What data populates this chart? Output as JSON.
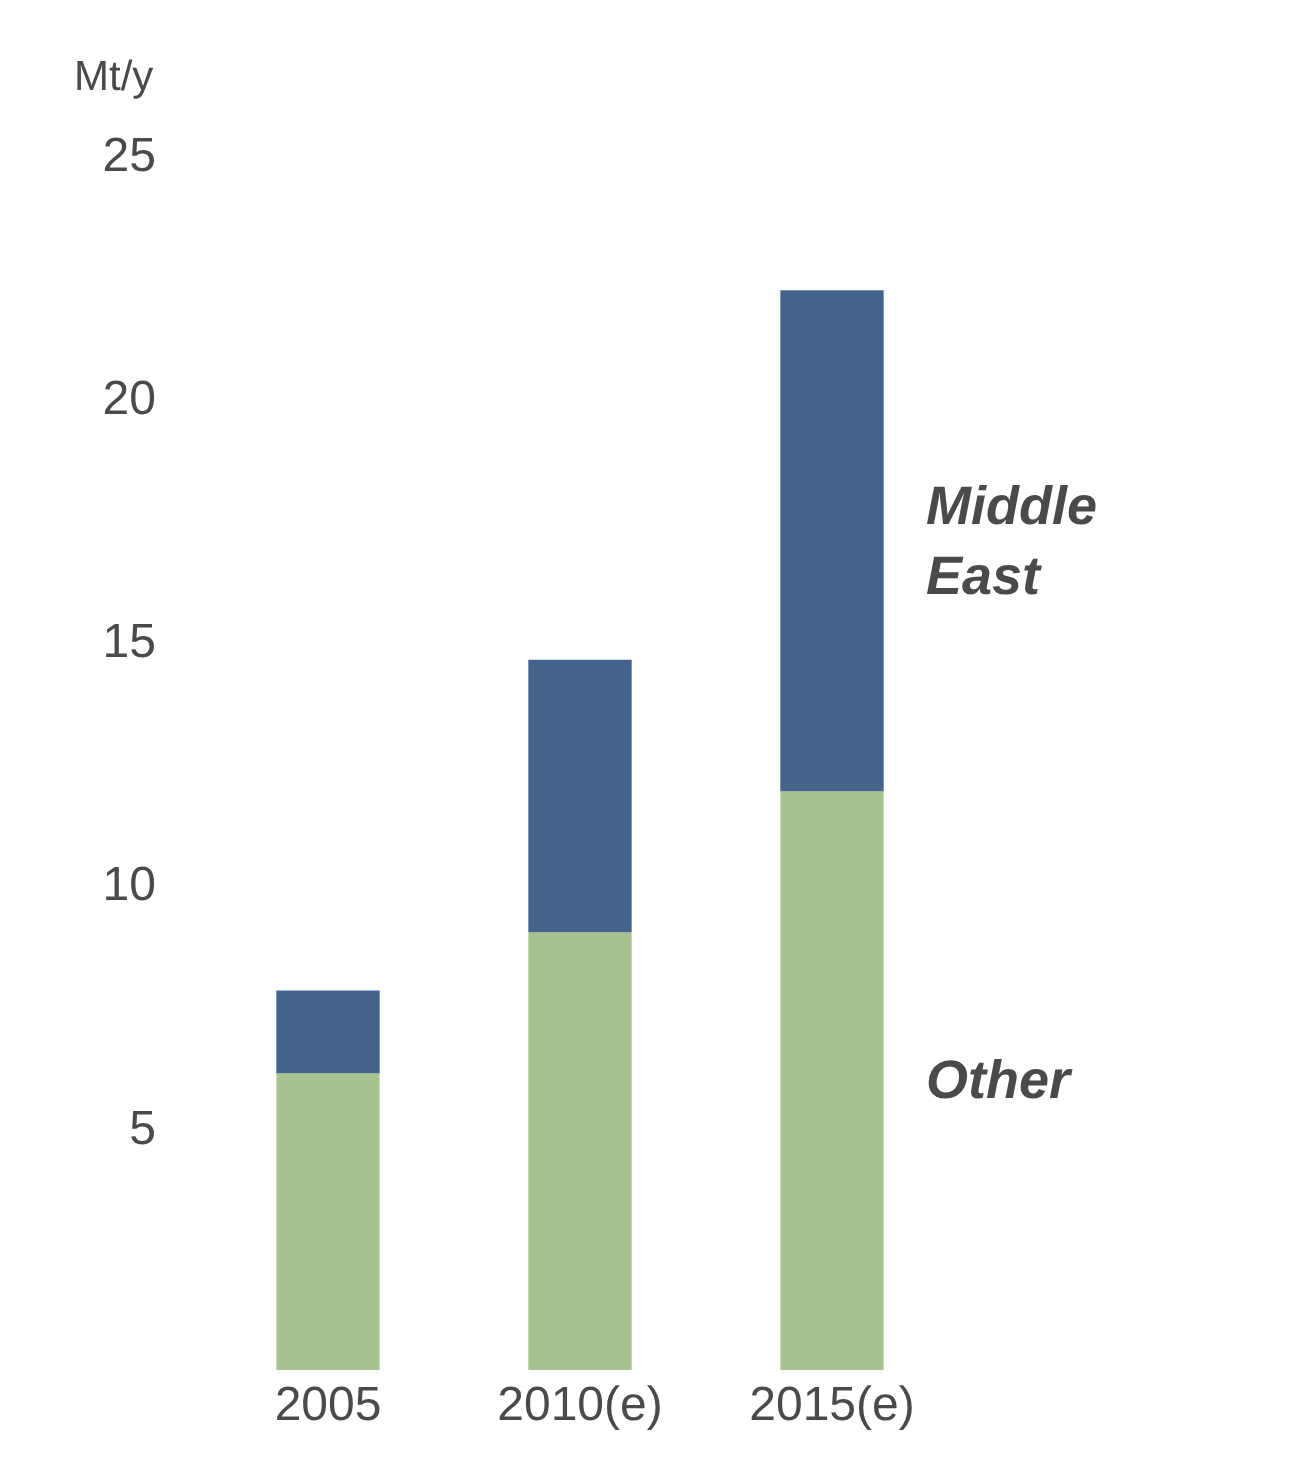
{
  "chart_data": {
    "type": "bar",
    "stacked": true,
    "ylabel": "Mt/y",
    "categories": [
      "2005",
      "2010(e)",
      "2015(e)"
    ],
    "series": [
      {
        "name": "Other",
        "color": "#a7c28f",
        "values": [
          6.1,
          9.0,
          11.9
        ]
      },
      {
        "name": "Middle East",
        "color": "#44648c",
        "values": [
          1.7,
          5.6,
          10.3
        ]
      }
    ],
    "ylim": [
      0,
      25
    ],
    "yticks": [
      5,
      10,
      15,
      20,
      25
    ],
    "legend": false
  }
}
